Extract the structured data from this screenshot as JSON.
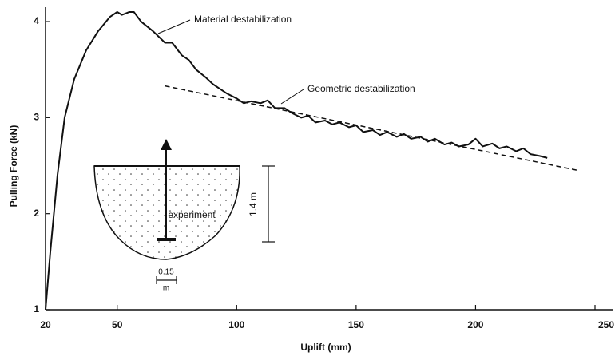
{
  "chart_data": {
    "type": "line",
    "x_label": "Uplift  (mm)",
    "y_label": "Pulling Force  (kN)",
    "xlim": [
      20,
      250
    ],
    "xticks": [
      20,
      50,
      100,
      150,
      200,
      250
    ],
    "ylim": [
      1,
      4.15
    ],
    "yticks": [
      1,
      2,
      3,
      4
    ],
    "grid": false,
    "series": [
      {
        "color": "#111111",
        "dash": false,
        "x": [
          20,
          22,
          25,
          28,
          32,
          37,
          42,
          47,
          50,
          52,
          55,
          57,
          60,
          65,
          70,
          73,
          77,
          80,
          83,
          87,
          90,
          93,
          96,
          100,
          103,
          106,
          110,
          113,
          116,
          120,
          123,
          127,
          130,
          133,
          137,
          140,
          143,
          147,
          150,
          153,
          157,
          160,
          163,
          167,
          170,
          173,
          177,
          180,
          183,
          187,
          190,
          193,
          197,
          200,
          203,
          207,
          210,
          213,
          217,
          220,
          223,
          227,
          230
        ],
        "values": [
          1.0,
          1.6,
          2.4,
          3.0,
          3.4,
          3.7,
          3.9,
          4.05,
          4.1,
          4.07,
          4.1,
          4.1,
          4.0,
          3.9,
          3.78,
          3.78,
          3.65,
          3.6,
          3.5,
          3.42,
          3.35,
          3.3,
          3.25,
          3.2,
          3.15,
          3.17,
          3.15,
          3.18,
          3.1,
          3.1,
          3.05,
          3.0,
          3.02,
          2.95,
          2.97,
          2.93,
          2.95,
          2.9,
          2.92,
          2.85,
          2.87,
          2.82,
          2.85,
          2.8,
          2.83,
          2.78,
          2.8,
          2.75,
          2.78,
          2.72,
          2.74,
          2.7,
          2.72,
          2.78,
          2.7,
          2.73,
          2.68,
          2.7,
          2.65,
          2.68,
          2.62,
          2.6,
          2.58
        ]
      },
      {
        "color": "#111111",
        "dash": true,
        "x": [
          70,
          243
        ],
        "values": [
          3.33,
          2.45
        ]
      }
    ],
    "annotations": [
      "Material destabilization",
      "Geometric destabilization",
      "experiment",
      "1.4 m",
      "0.15",
      "m"
    ]
  }
}
